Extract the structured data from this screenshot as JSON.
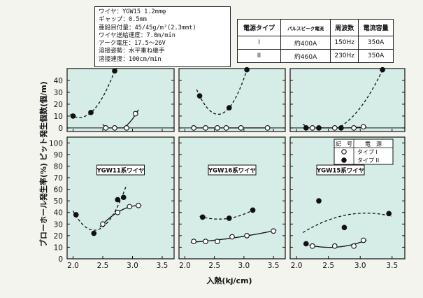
{
  "info": {
    "lines": [
      "ワイヤ：YGW15 1.2mmφ",
      "ギャップ：0.5mm",
      "亜鉛目付量：45/45g/m²(2.3mmt)",
      "ワイヤ送給速度：7.0m/min",
      "アーク電圧：17.5～26V",
      "溶接姿勢：水平重ね継手",
      "溶接速度：100cm/min"
    ]
  },
  "power_table": {
    "headers": [
      "電源タイプ",
      "パルスピーク電流",
      "周波数",
      "電流容量"
    ],
    "rows": [
      [
        "I",
        "約400A",
        "150Hz",
        "350A"
      ],
      [
        "II",
        "約460A",
        "230Hz",
        "350A"
      ]
    ]
  },
  "legend": {
    "headers": [
      "記　号",
      "電　源"
    ],
    "items": [
      {
        "marker": "open",
        "label": "タイプ I"
      },
      {
        "marker": "filled",
        "label": "タイプ II"
      }
    ]
  },
  "chart_data": {
    "type": "scatter",
    "xlabel": "入熱(kj/cm)",
    "xlim": [
      1.9,
      3.7
    ],
    "xticks": [
      "2.0",
      "2.5",
      "3.0",
      "3.5"
    ],
    "top_ylabel": "ピット発生個数(個/m)",
    "top_ylim": [
      -3,
      50
    ],
    "top_yticks": [
      "0",
      "10",
      "20",
      "30",
      "40"
    ],
    "bottom_ylabel": "ブローホール発生率(%)",
    "bottom_ylim": [
      0,
      105
    ],
    "bottom_yticks": [
      "0",
      "10",
      "20",
      "30",
      "40",
      "50",
      "60",
      "70",
      "80",
      "90",
      "100"
    ],
    "wires": [
      "YGW11系ワイヤ",
      "YGW16系ワイヤ",
      "YGW15系ワイヤ"
    ],
    "panels": [
      {
        "wire": "YGW11系ワイヤ",
        "pit": {
          "type1": [
            [
              2.55,
              0
            ],
            [
              2.7,
              0
            ],
            [
              2.9,
              0
            ],
            [
              3.05,
              12
            ]
          ],
          "type2": [
            [
              2.0,
              10
            ],
            [
              2.3,
              13
            ],
            [
              2.7,
              48
            ]
          ]
        },
        "blowhole": {
          "type1": [
            [
              2.5,
              30
            ],
            [
              2.75,
              40
            ],
            [
              2.95,
              45
            ],
            [
              3.1,
              46
            ]
          ],
          "type2": [
            [
              2.05,
              38
            ],
            [
              2.35,
              22
            ],
            [
              2.75,
              51
            ],
            [
              2.85,
              53
            ]
          ]
        }
      },
      {
        "wire": "YGW16系ワイヤ",
        "pit": {
          "type1": [
            [
              2.15,
              0
            ],
            [
              2.35,
              0
            ],
            [
              2.55,
              0
            ],
            [
              2.7,
              0
            ],
            [
              2.95,
              0
            ],
            [
              3.4,
              0
            ]
          ],
          "type2": [
            [
              2.25,
              27
            ],
            [
              2.75,
              17
            ],
            [
              3.05,
              49
            ]
          ]
        },
        "blowhole": {
          "type1": [
            [
              2.15,
              15
            ],
            [
              2.35,
              15
            ],
            [
              2.55,
              15
            ],
            [
              2.8,
              19
            ],
            [
              3.05,
              20
            ],
            [
              3.5,
              24
            ]
          ],
          "type2": [
            [
              2.3,
              36
            ],
            [
              2.75,
              35
            ],
            [
              3.15,
              42
            ]
          ]
        }
      },
      {
        "wire": "YGW15系ワイヤ",
        "pit": {
          "type1": [
            [
              2.25,
              0
            ],
            [
              2.6,
              0
            ],
            [
              2.9,
              0
            ],
            [
              3.05,
              1
            ]
          ],
          "type2": [
            [
              2.15,
              0
            ],
            [
              2.35,
              0
            ],
            [
              2.7,
              0
            ],
            [
              3.35,
              49
            ]
          ]
        },
        "blowhole": {
          "type1": [
            [
              2.25,
              11
            ],
            [
              2.6,
              11
            ],
            [
              2.9,
              11
            ],
            [
              3.05,
              16
            ]
          ],
          "type2": [
            [
              2.15,
              13
            ],
            [
              2.35,
              50
            ],
            [
              2.75,
              27
            ],
            [
              3.45,
              39
            ]
          ]
        }
      }
    ]
  },
  "colors": {
    "panel_bg": "#d6ece7",
    "ink": "#111111"
  }
}
